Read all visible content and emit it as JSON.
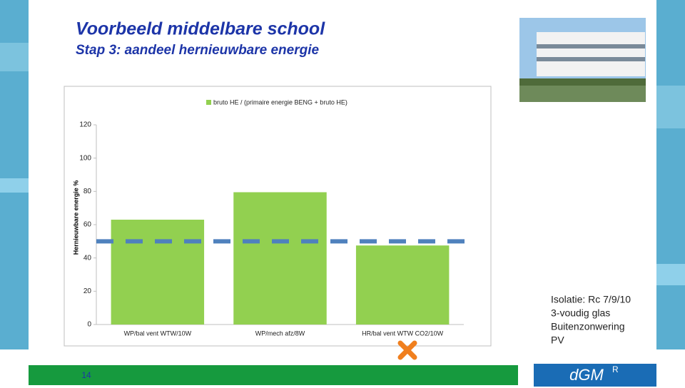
{
  "slide": {
    "title": "Voorbeeld middelbare school",
    "subtitle": "Stap 3: aandeel hernieuwbare energie",
    "notes": [
      "Isolatie: Rc 7/9/10",
      "3-voudig glas",
      "Buitenzonwering",
      "PV"
    ],
    "page_number": "14",
    "logo": "dGM",
    "logo_sup": "R"
  },
  "chart_data": {
    "type": "bar",
    "series_name": "bruto HE / (primaire energie BENG + bruto HE)",
    "categories": [
      "WP/bal vent WTW/10W",
      "WP/mech afz/8W",
      "HR/bal vent WTW CO2/10W"
    ],
    "values": [
      63,
      79.5,
      47.5
    ],
    "color": "#92d050",
    "y_label": "Hernieuwbare energie %",
    "ylim": [
      0,
      120
    ],
    "yticks": [
      0,
      20,
      40,
      60,
      80,
      100,
      120
    ],
    "target_line": {
      "value": 50,
      "color": "#4f81bd"
    }
  }
}
